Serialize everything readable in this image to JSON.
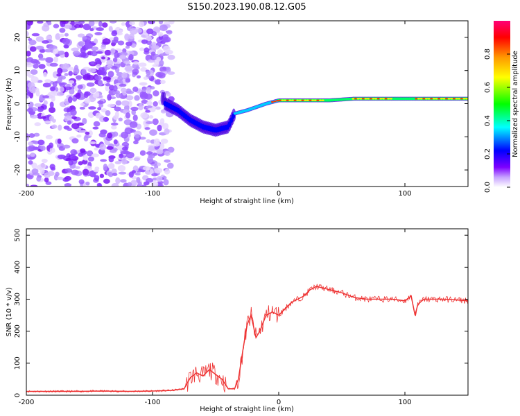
{
  "title": "S150.2023.190.08.12.G05",
  "chart_data": [
    {
      "type": "heatmap",
      "xlabel": "Height of straight line (km)",
      "ylabel": "Frequency (Hz)",
      "xlim": [
        -200,
        150
      ],
      "ylim": [
        -25,
        25
      ],
      "x_ticks": [
        -200,
        -100,
        0,
        100
      ],
      "y_ticks": [
        -20,
        -10,
        0,
        10,
        20
      ],
      "colorbar": {
        "label": "Normalized spectral amplitude",
        "range": [
          0,
          1
        ],
        "ticks": [
          "0.0",
          "0.2",
          "0.4",
          "0.6",
          "0.8"
        ],
        "colors": [
          "#ffffff",
          "#c7a3ff",
          "#7d00ff",
          "#0000ff",
          "#00ffff",
          "#00ff00",
          "#ffff00",
          "#ff9900",
          "#ff0000",
          "#ff0077"
        ]
      },
      "ridge": [
        {
          "x": -90,
          "y": 0
        },
        {
          "x": -80,
          "y": -2
        },
        {
          "x": -70,
          "y": -5
        },
        {
          "x": -60,
          "y": -7
        },
        {
          "x": -50,
          "y": -8
        },
        {
          "x": -40,
          "y": -7
        },
        {
          "x": -35,
          "y": -3
        },
        {
          "x": -25,
          "y": -2
        },
        {
          "x": -10,
          "y": 0
        },
        {
          "x": 0,
          "y": 1
        },
        {
          "x": 20,
          "y": 1
        },
        {
          "x": 40,
          "y": 1
        },
        {
          "x": 60,
          "y": 1.5
        },
        {
          "x": 80,
          "y": 1.5
        },
        {
          "x": 100,
          "y": 1.5
        },
        {
          "x": 120,
          "y": 1.5
        },
        {
          "x": 150,
          "y": 1.5
        }
      ]
    },
    {
      "type": "line",
      "xlabel": "Height of straight line (km)",
      "ylabel": "SNR (10 * v/v)",
      "xlim": [
        -200,
        150
      ],
      "ylim": [
        0,
        520
      ],
      "x_ticks": [
        -200,
        -100,
        0,
        100
      ],
      "y_ticks": [
        0,
        100,
        200,
        300,
        400,
        500
      ],
      "color": "#ee3333",
      "x": [
        -200,
        -180,
        -160,
        -140,
        -120,
        -100,
        -85,
        -75,
        -70,
        -65,
        -60,
        -55,
        -50,
        -45,
        -40,
        -35,
        -32,
        -28,
        -25,
        -22,
        -18,
        -15,
        -10,
        -5,
        0,
        5,
        10,
        15,
        20,
        25,
        30,
        35,
        40,
        45,
        50,
        60,
        70,
        80,
        90,
        100,
        105,
        108,
        110,
        112,
        115,
        120,
        130,
        140,
        150
      ],
      "y": [
        12,
        12,
        12,
        13,
        12,
        13,
        15,
        20,
        55,
        70,
        60,
        80,
        65,
        50,
        20,
        20,
        50,
        150,
        220,
        250,
        180,
        200,
        250,
        260,
        250,
        270,
        290,
        300,
        310,
        330,
        340,
        335,
        330,
        325,
        320,
        305,
        300,
        300,
        300,
        295,
        310,
        250,
        280,
        290,
        300,
        300,
        300,
        298,
        295
      ]
    }
  ]
}
